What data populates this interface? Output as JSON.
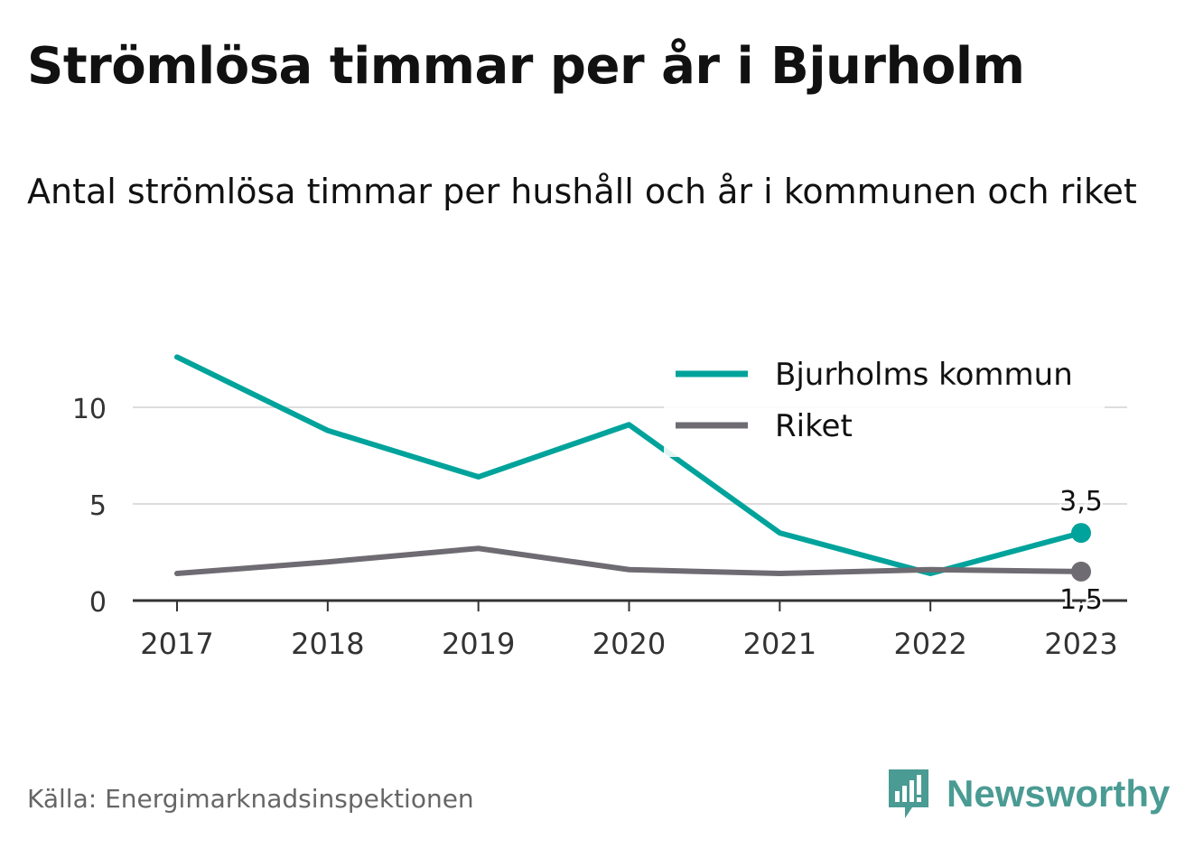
{
  "title": "Strömlösa timmar per år i Bjurholm",
  "subtitle": "Antal strömlösa timmar per hushåll och år i kommunen och riket",
  "source": "Källa: Energimarknadsinspektionen",
  "brand": {
    "name": "Newsworthy",
    "icon": "newsworthy-logo-icon",
    "color": "#4a9b93"
  },
  "chart_data": {
    "type": "line",
    "x": [
      "2017",
      "2018",
      "2019",
      "2020",
      "2021",
      "2022",
      "2023"
    ],
    "series": [
      {
        "name": "Bjurholms kommun",
        "color": "#00a39b",
        "values": [
          12.6,
          8.8,
          6.4,
          9.1,
          3.5,
          1.4,
          3.5
        ],
        "end_label": "3,5"
      },
      {
        "name": "Riket",
        "color": "#6e6c72",
        "values": [
          1.4,
          2.0,
          2.7,
          1.6,
          1.4,
          1.6,
          1.5
        ],
        "end_label": "1,5"
      }
    ],
    "yticks": [
      0,
      5,
      10
    ],
    "ylim": [
      0,
      13
    ],
    "grid": true,
    "legend": "top-right",
    "xlabel": "",
    "ylabel": ""
  }
}
